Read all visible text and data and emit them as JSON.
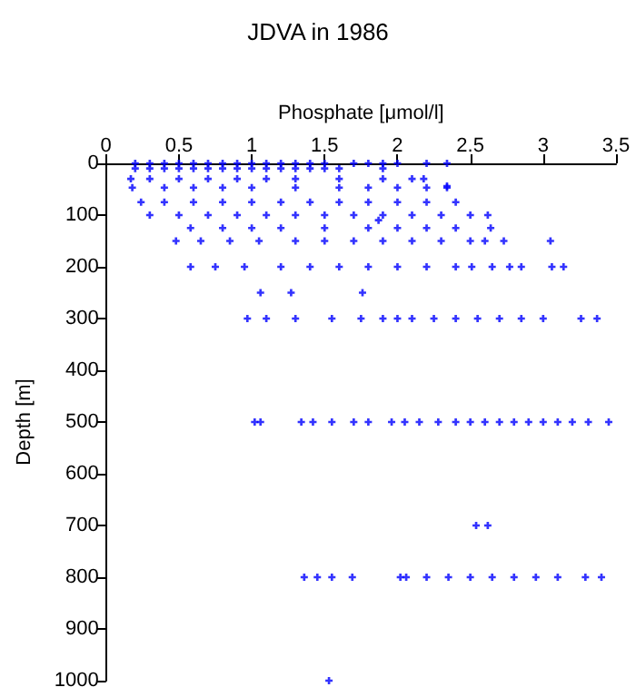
{
  "chart_data": {
    "type": "scatter",
    "title": "JDVA in 1986",
    "xlabel": "Phosphate [μmol/l]",
    "ylabel": "Depth [m]",
    "xlim": [
      0,
      3.5
    ],
    "xticks": [
      0,
      0.5,
      1,
      1.5,
      2,
      2.5,
      3,
      3.5
    ],
    "ylim": [
      1000,
      0
    ],
    "yticks": [
      0,
      100,
      200,
      300,
      400,
      500,
      600,
      700,
      800,
      900,
      1000
    ],
    "grid": false,
    "marker": "cross",
    "series": [
      {
        "color": "#0000ff",
        "x": [
          0.2,
          0.3,
          0.4,
          0.5,
          0.6,
          0.7,
          0.8,
          0.9,
          1.0,
          1.1,
          1.2,
          1.3,
          1.4,
          1.5,
          1.7,
          1.8,
          1.9,
          2.0,
          2.2,
          2.34,
          0.2,
          0.3,
          0.4,
          0.5,
          0.6,
          0.7,
          0.8,
          0.9,
          1.0,
          1.1,
          1.2,
          1.3,
          1.4,
          1.5,
          1.6,
          1.9,
          0.17,
          0.3,
          0.5,
          0.7,
          0.9,
          1.1,
          1.3,
          1.6,
          1.9,
          2.1,
          2.18,
          2.34,
          0.18,
          0.4,
          0.6,
          0.8,
          1.0,
          1.3,
          1.6,
          1.8,
          2.0,
          2.2,
          2.34,
          0.24,
          0.4,
          0.6,
          0.8,
          1.0,
          1.2,
          1.4,
          1.6,
          1.8,
          2.0,
          2.2,
          2.4,
          0.3,
          0.5,
          0.7,
          0.9,
          1.1,
          1.3,
          1.5,
          1.7,
          1.9,
          2.1,
          2.3,
          2.5,
          2.62,
          1.87,
          0.58,
          0.8,
          1.0,
          1.2,
          1.5,
          1.8,
          2.0,
          2.2,
          2.4,
          2.64,
          0.48,
          0.65,
          0.85,
          1.05,
          1.3,
          1.5,
          1.7,
          1.9,
          2.1,
          2.3,
          2.5,
          2.6,
          2.73,
          3.05,
          0.58,
          0.75,
          0.95,
          1.2,
          1.4,
          1.6,
          1.8,
          2.0,
          2.2,
          2.4,
          2.51,
          2.65,
          2.77,
          2.85,
          3.06,
          3.14,
          1.06,
          1.27,
          1.76,
          0.97,
          1.1,
          1.3,
          1.55,
          1.75,
          1.9,
          2.0,
          2.1,
          2.25,
          2.4,
          2.55,
          2.7,
          2.85,
          3.0,
          3.26,
          3.37,
          1.02,
          1.06,
          1.34,
          1.42,
          1.55,
          1.7,
          1.8,
          1.96,
          2.05,
          2.15,
          2.28,
          2.4,
          2.5,
          2.6,
          2.7,
          2.8,
          2.9,
          3.0,
          3.1,
          3.2,
          3.31,
          3.45,
          2.54,
          2.62,
          1.36,
          1.45,
          1.55,
          1.69,
          2.02,
          2.06,
          2.2,
          2.35,
          2.5,
          2.65,
          2.8,
          2.95,
          3.1,
          3.29,
          3.4,
          1.53
        ],
        "values": [
          0,
          0,
          0,
          0,
          0,
          0,
          0,
          0,
          0,
          0,
          0,
          0,
          0,
          0,
          0,
          0,
          0,
          0,
          0,
          0,
          10,
          10,
          10,
          10,
          10,
          10,
          10,
          10,
          10,
          10,
          10,
          10,
          10,
          10,
          10,
          10,
          30,
          30,
          30,
          30,
          30,
          30,
          30,
          30,
          30,
          30,
          30,
          44,
          47,
          47,
          47,
          47,
          47,
          47,
          47,
          47,
          47,
          47,
          47,
          75,
          75,
          75,
          75,
          75,
          75,
          75,
          75,
          75,
          75,
          75,
          75,
          100,
          100,
          100,
          100,
          100,
          100,
          100,
          100,
          100,
          100,
          100,
          100,
          100,
          110,
          125,
          125,
          125,
          125,
          125,
          125,
          125,
          125,
          125,
          125,
          150,
          150,
          150,
          150,
          150,
          150,
          150,
          150,
          150,
          150,
          150,
          150,
          150,
          150,
          200,
          200,
          200,
          200,
          200,
          200,
          200,
          200,
          200,
          200,
          200,
          200,
          200,
          200,
          200,
          200,
          250,
          250,
          250,
          300,
          300,
          300,
          300,
          300,
          300,
          300,
          300,
          300,
          300,
          300,
          300,
          300,
          300,
          300,
          300,
          500,
          500,
          500,
          500,
          500,
          500,
          500,
          500,
          500,
          500,
          500,
          500,
          500,
          500,
          500,
          500,
          500,
          500,
          500,
          500,
          500,
          500,
          700,
          700,
          800,
          800,
          800,
          800,
          800,
          800,
          800,
          800,
          800,
          800,
          800,
          800,
          800,
          800,
          800,
          1000
        ]
      }
    ]
  }
}
